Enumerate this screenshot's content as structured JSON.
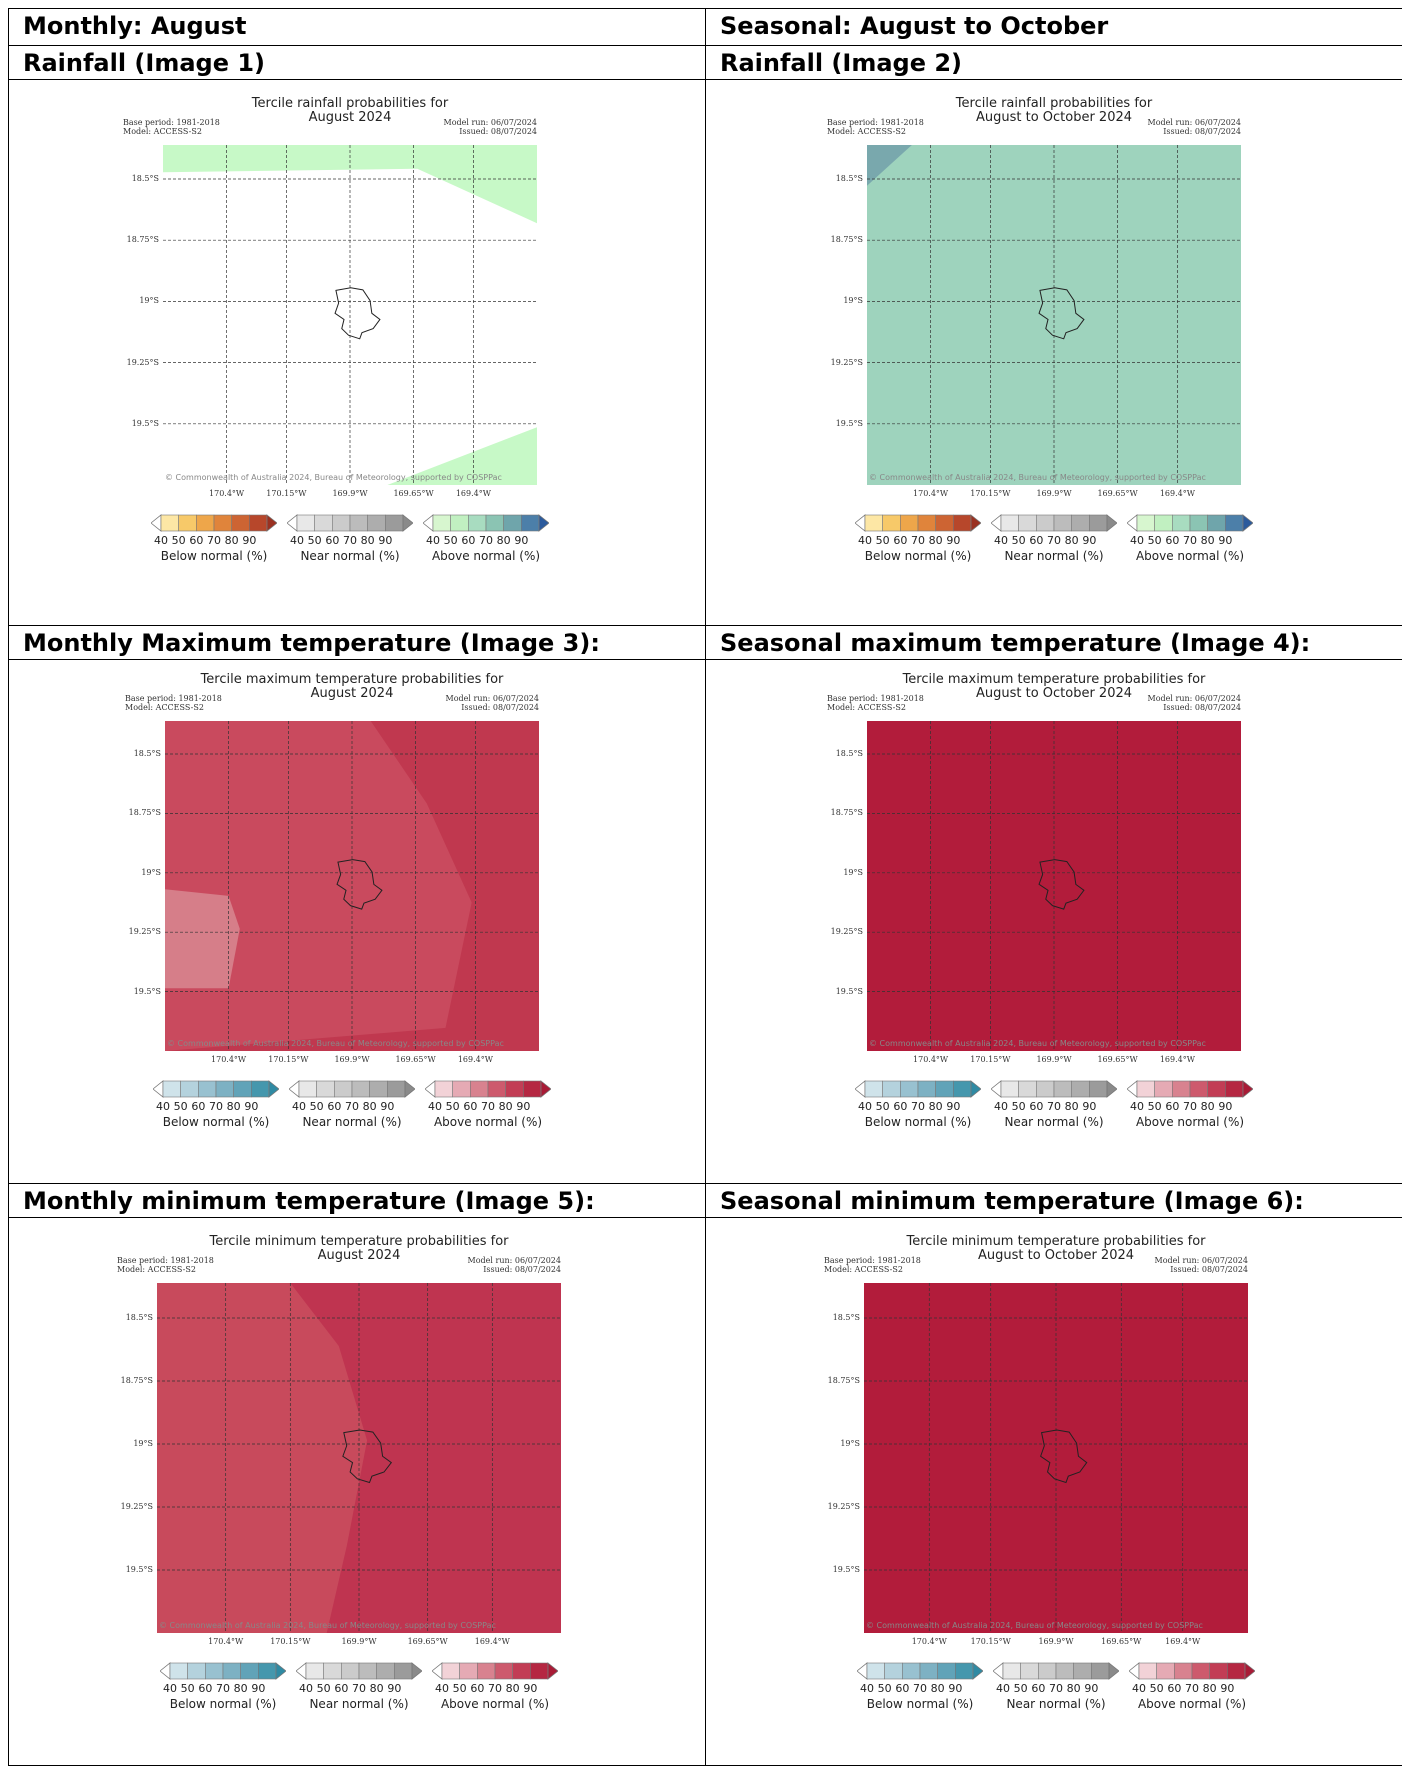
{
  "table": {
    "row1": {
      "left": "Monthly: August",
      "right": "Seasonal: August to October"
    },
    "row2": {
      "left": "Rainfall (Image 1)",
      "right": "Rainfall (Image 2)"
    },
    "row4": {
      "left": "Monthly Maximum temperature (Image 3):",
      "right": "Seasonal maximum temperature (Image 4):"
    },
    "row6": {
      "left": "Monthly minimum temperature (Image 5):",
      "right": "Seasonal minimum temperature (Image 6):"
    }
  },
  "common": {
    "base_period": "Base period: 1981-2018",
    "model": "Model: ACCESS-S2",
    "model_run": "Model run: 06/07/2024",
    "issued": "Issued: 08/07/2024",
    "copyright": "© Commonwealth of Australia 2024, Bureau of Meteorology, supported by COSPPac",
    "lat_ticks": [
      "18.5°S",
      "18.75°S",
      "19°S",
      "19.25°S",
      "19.5°S"
    ],
    "lon_ticks": [
      "170.4°W",
      "170.15°W",
      "169.9°W",
      "169.65°W",
      "169.4°W"
    ],
    "legend_numbers": [
      "40",
      "50",
      "60",
      "70",
      "80",
      "90"
    ],
    "legend_labels": [
      "Below normal (%)",
      "Near normal (%)",
      "Above normal (%)"
    ]
  },
  "palettes": {
    "below_rain": [
      "#ffffff",
      "#fde7a5",
      "#f7c969",
      "#eea64a",
      "#e0843b",
      "#cd6433",
      "#b7472b",
      "#9a3121"
    ],
    "above_rain": [
      "#ffffff",
      "#d7f6cf",
      "#c1f0c1",
      "#a8dcc0",
      "#8bc4b3",
      "#6fa5ab",
      "#4c7fa9",
      "#2b5a9c"
    ],
    "near": [
      "#ffffff",
      "#e8e8e8",
      "#d9d9d9",
      "#cbcbcb",
      "#bcbcbc",
      "#adadad",
      "#9b9b9b",
      "#8a8a8a"
    ],
    "below_temp": [
      "#ffffff",
      "#cfe3ea",
      "#b4d2dd",
      "#98c1d0",
      "#7db1c3",
      "#61a3b8",
      "#4597ad",
      "#2f8aa3"
    ],
    "above_temp": [
      "#ffffff",
      "#f2d2d7",
      "#e5aab4",
      "#d8828f",
      "#cd5a6d",
      "#c23d55",
      "#b52742",
      "#a81b36"
    ]
  },
  "maps": [
    {
      "id": "rain-month",
      "title_line1": "Tercile rainfall probabilities for",
      "title_line2": "August 2024",
      "background": "#ffffff",
      "legend": "rain",
      "regions": [
        {
          "category": "above normal",
          "probability_band": "40-50",
          "color": "#c7f9c7"
        }
      ]
    },
    {
      "id": "rain-season",
      "title_line1": "Tercile rainfall probabilities for",
      "title_line2": "August to October 2024",
      "background": "#9ed3bd",
      "legend": "rain",
      "regions": [
        {
          "category": "above normal",
          "probability_band": "50-60",
          "color": "#9ed3bd"
        },
        {
          "category": "above normal",
          "probability_band": "60-70",
          "color": "#79a8ad"
        }
      ]
    },
    {
      "id": "tmax-month",
      "title_line1": "Tercile maximum temperature probabilities for",
      "title_line2": "August 2024",
      "background": "#c0384f",
      "legend": "temp",
      "regions": [
        {
          "category": "above normal",
          "probability_band": "70-80",
          "color": "#c0384f"
        },
        {
          "category": "above normal",
          "probability_band": "60-70",
          "color": "#c94a5e"
        },
        {
          "category": "above normal",
          "probability_band": "50-60",
          "color": "#d67e89"
        }
      ]
    },
    {
      "id": "tmax-season",
      "title_line1": "Tercile maximum temperature probabilities for",
      "title_line2": "August to October 2024",
      "background": "#b21c3b",
      "legend": "temp",
      "regions": [
        {
          "category": "above normal",
          "probability_band": "80-90",
          "color": "#b21c3b"
        }
      ]
    },
    {
      "id": "tmin-month",
      "title_line1": "Tercile minimum temperature probabilities for",
      "title_line2": "August 2024",
      "background": "#bf3450",
      "legend": "temp",
      "regions": [
        {
          "category": "above normal",
          "probability_band": "70-80",
          "color": "#bf3450"
        },
        {
          "category": "above normal",
          "probability_band": "60-70",
          "color": "#c84a5c"
        }
      ]
    },
    {
      "id": "tmin-season",
      "title_line1": "Tercile minimum temperature probabilities for",
      "title_line2": "August to October 2024",
      "background": "#b21c3b",
      "legend": "temp",
      "regions": [
        {
          "category": "above normal",
          "probability_band": "80-90",
          "color": "#b21c3b"
        }
      ]
    }
  ]
}
